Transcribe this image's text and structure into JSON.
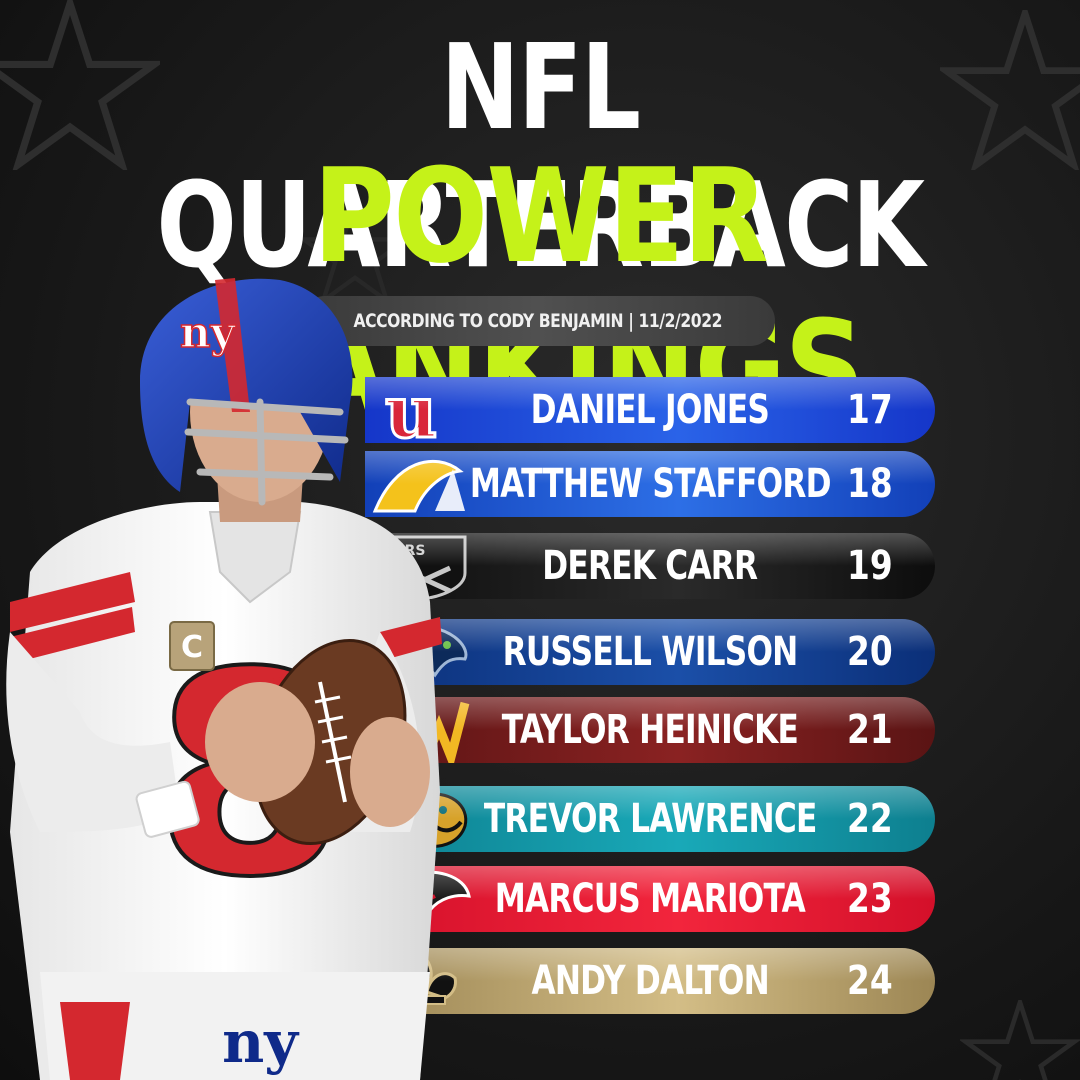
{
  "title": {
    "line1": "NFL QUARTERBACK",
    "line2": "POWER RANKINGS"
  },
  "byline": "ACCORDING TO CODY BENJAMIN | 11/2/2022",
  "colors": {
    "title_white": "#ffffff",
    "title_accent": "#c5f219",
    "background": "#161616"
  },
  "rankings": [
    {
      "name": "DANIEL JONES",
      "rank": "17",
      "team_logo": "giants-ny-logo",
      "color_a": "#1536c9",
      "color_b": "#2a63e8"
    },
    {
      "name": "MATTHEW STAFFORD",
      "rank": "18",
      "team_logo": "rams-horn-logo",
      "color_a": "#1240b8",
      "color_b": "#2d6fe6"
    },
    {
      "name": "DEREK CARR",
      "rank": "19",
      "team_logo": "raiders-shield-logo",
      "color_a": "#0d0d0d",
      "color_b": "#2a2a2a"
    },
    {
      "name": "RUSSELL WILSON",
      "rank": "20",
      "team_logo": "seahawks-head-logo",
      "color_a": "#0b2f78",
      "color_b": "#1b4fa8"
    },
    {
      "name": "TAYLOR HEINICKE",
      "rank": "21",
      "team_logo": "commanders-w-logo",
      "color_a": "#5a1414",
      "color_b": "#8a2222"
    },
    {
      "name": "TREVOR LAWRENCE",
      "rank": "22",
      "team_logo": "jaguars-head-logo",
      "color_a": "#0d7f8f",
      "color_b": "#19a9b8"
    },
    {
      "name": "MARCUS MARIOTA",
      "rank": "23",
      "team_logo": "falcons-bird-logo",
      "color_a": "#d4102a",
      "color_b": "#f2253c"
    },
    {
      "name": "ANDY DALTON",
      "rank": "24",
      "team_logo": "saints-fleur-de-lis-logo",
      "color_a": "#9c8654",
      "color_b": "#d3bd86"
    }
  ],
  "player": {
    "jersey_number": "8",
    "jersey_logo": "ny",
    "captain_patch": "C"
  }
}
